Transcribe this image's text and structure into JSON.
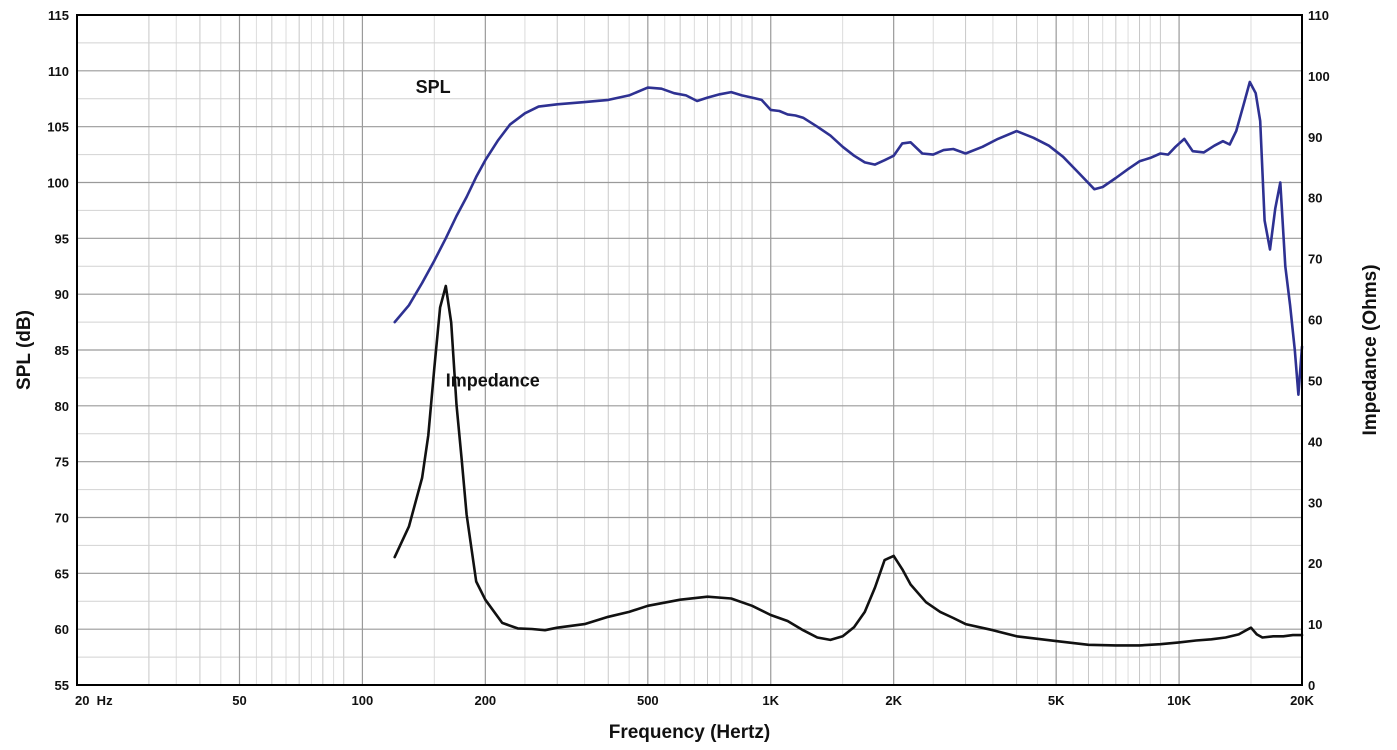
{
  "chart_data": {
    "type": "line",
    "x_scale": "log",
    "grid": true,
    "xlabel": "Frequency (Hertz)",
    "ylabel_left": "SPL (dB)",
    "ylabel_right": "Impedance (Ohms)",
    "xlim": [
      20,
      20000
    ],
    "ylim_left": [
      55,
      115
    ],
    "ylim_right": [
      0,
      110
    ],
    "x_ticks": [
      {
        "value": 20,
        "label": "20  Hz"
      },
      {
        "value": 50,
        "label": "50"
      },
      {
        "value": 100,
        "label": "100"
      },
      {
        "value": 200,
        "label": "200"
      },
      {
        "value": 500,
        "label": "500"
      },
      {
        "value": 1000,
        "label": "1K"
      },
      {
        "value": 2000,
        "label": "2K"
      },
      {
        "value": 5000,
        "label": "5K"
      },
      {
        "value": 10000,
        "label": "10K"
      },
      {
        "value": 20000,
        "label": "20K"
      }
    ],
    "y_ticks_left": [
      55,
      60,
      65,
      70,
      75,
      80,
      85,
      90,
      95,
      100,
      105,
      110,
      115
    ],
    "y_ticks_right": [
      0,
      10,
      20,
      30,
      40,
      50,
      60,
      70,
      80,
      90,
      100,
      110
    ],
    "series": [
      {
        "name": "SPL",
        "axis": "left",
        "color": "#2e3192",
        "label_at": {
          "x": 135,
          "y": 108
        },
        "points": [
          [
            120,
            87.5
          ],
          [
            130,
            89.0
          ],
          [
            140,
            91.0
          ],
          [
            150,
            93.0
          ],
          [
            160,
            95.0
          ],
          [
            170,
            97.0
          ],
          [
            180,
            98.7
          ],
          [
            190,
            100.5
          ],
          [
            200,
            102.0
          ],
          [
            215,
            103.8
          ],
          [
            230,
            105.2
          ],
          [
            250,
            106.2
          ],
          [
            270,
            106.8
          ],
          [
            300,
            107.0
          ],
          [
            350,
            107.2
          ],
          [
            400,
            107.4
          ],
          [
            450,
            107.8
          ],
          [
            500,
            108.5
          ],
          [
            540,
            108.4
          ],
          [
            580,
            108.0
          ],
          [
            620,
            107.8
          ],
          [
            660,
            107.3
          ],
          [
            700,
            107.6
          ],
          [
            750,
            107.9
          ],
          [
            800,
            108.1
          ],
          [
            850,
            107.8
          ],
          [
            900,
            107.6
          ],
          [
            950,
            107.4
          ],
          [
            1000,
            106.5
          ],
          [
            1050,
            106.4
          ],
          [
            1100,
            106.1
          ],
          [
            1150,
            106.0
          ],
          [
            1200,
            105.8
          ],
          [
            1300,
            105.0
          ],
          [
            1400,
            104.2
          ],
          [
            1500,
            103.2
          ],
          [
            1600,
            102.4
          ],
          [
            1700,
            101.8
          ],
          [
            1800,
            101.6
          ],
          [
            1900,
            102.0
          ],
          [
            2000,
            102.4
          ],
          [
            2100,
            103.5
          ],
          [
            2200,
            103.6
          ],
          [
            2350,
            102.6
          ],
          [
            2500,
            102.5
          ],
          [
            2650,
            102.9
          ],
          [
            2800,
            103.0
          ],
          [
            3000,
            102.6
          ],
          [
            3300,
            103.2
          ],
          [
            3600,
            103.9
          ],
          [
            4000,
            104.6
          ],
          [
            4400,
            104.0
          ],
          [
            4800,
            103.3
          ],
          [
            5200,
            102.3
          ],
          [
            5700,
            100.8
          ],
          [
            6200,
            99.4
          ],
          [
            6500,
            99.6
          ],
          [
            7000,
            100.4
          ],
          [
            7500,
            101.2
          ],
          [
            8000,
            101.9
          ],
          [
            8500,
            102.2
          ],
          [
            9000,
            102.6
          ],
          [
            9400,
            102.5
          ],
          [
            9800,
            103.2
          ],
          [
            10300,
            103.9
          ],
          [
            10800,
            102.8
          ],
          [
            11500,
            102.7
          ],
          [
            12200,
            103.3
          ],
          [
            12800,
            103.7
          ],
          [
            13300,
            103.4
          ],
          [
            13800,
            104.6
          ],
          [
            14400,
            107.0
          ],
          [
            14900,
            109.0
          ],
          [
            15400,
            108.0
          ],
          [
            15800,
            105.5
          ],
          [
            16200,
            96.6
          ],
          [
            16700,
            94.0
          ],
          [
            17200,
            97.7
          ],
          [
            17700,
            100.0
          ],
          [
            18200,
            92.5
          ],
          [
            18700,
            89.0
          ],
          [
            19200,
            85.0
          ],
          [
            19600,
            81.0
          ],
          [
            20000,
            85.3
          ]
        ]
      },
      {
        "name": "Impedance",
        "axis": "right",
        "color": "#111111",
        "label_at": {
          "x": 160,
          "y": 49
        },
        "points": [
          [
            120,
            21
          ],
          [
            130,
            26
          ],
          [
            140,
            34
          ],
          [
            145,
            41
          ],
          [
            150,
            52
          ],
          [
            155,
            62
          ],
          [
            160,
            65.5
          ],
          [
            165,
            59.5
          ],
          [
            170,
            46
          ],
          [
            175,
            37
          ],
          [
            180,
            28
          ],
          [
            190,
            17
          ],
          [
            200,
            14
          ],
          [
            220,
            10.2
          ],
          [
            240,
            9.3
          ],
          [
            260,
            9.2
          ],
          [
            280,
            9.0
          ],
          [
            300,
            9.4
          ],
          [
            350,
            10.0
          ],
          [
            400,
            11.2
          ],
          [
            450,
            12.0
          ],
          [
            500,
            13.0
          ],
          [
            600,
            14.0
          ],
          [
            700,
            14.5
          ],
          [
            800,
            14.2
          ],
          [
            900,
            13.0
          ],
          [
            1000,
            11.5
          ],
          [
            1100,
            10.5
          ],
          [
            1200,
            9.0
          ],
          [
            1300,
            7.8
          ],
          [
            1400,
            7.4
          ],
          [
            1500,
            8.0
          ],
          [
            1600,
            9.5
          ],
          [
            1700,
            12.0
          ],
          [
            1800,
            16.0
          ],
          [
            1900,
            20.5
          ],
          [
            2000,
            21.2
          ],
          [
            2100,
            19.0
          ],
          [
            2200,
            16.5
          ],
          [
            2400,
            13.6
          ],
          [
            2600,
            12.0
          ],
          [
            2800,
            11.0
          ],
          [
            3000,
            10.0
          ],
          [
            3500,
            9.0
          ],
          [
            4000,
            8.0
          ],
          [
            5000,
            7.2
          ],
          [
            6000,
            6.6
          ],
          [
            7000,
            6.5
          ],
          [
            8000,
            6.5
          ],
          [
            9000,
            6.7
          ],
          [
            10000,
            7.0
          ],
          [
            11000,
            7.3
          ],
          [
            12000,
            7.5
          ],
          [
            13000,
            7.8
          ],
          [
            14000,
            8.3
          ],
          [
            14600,
            9.0
          ],
          [
            15000,
            9.4
          ],
          [
            15500,
            8.3
          ],
          [
            16000,
            7.8
          ],
          [
            17000,
            8.0
          ],
          [
            18000,
            8.0
          ],
          [
            19000,
            8.2
          ],
          [
            20000,
            8.2
          ]
        ]
      }
    ]
  }
}
